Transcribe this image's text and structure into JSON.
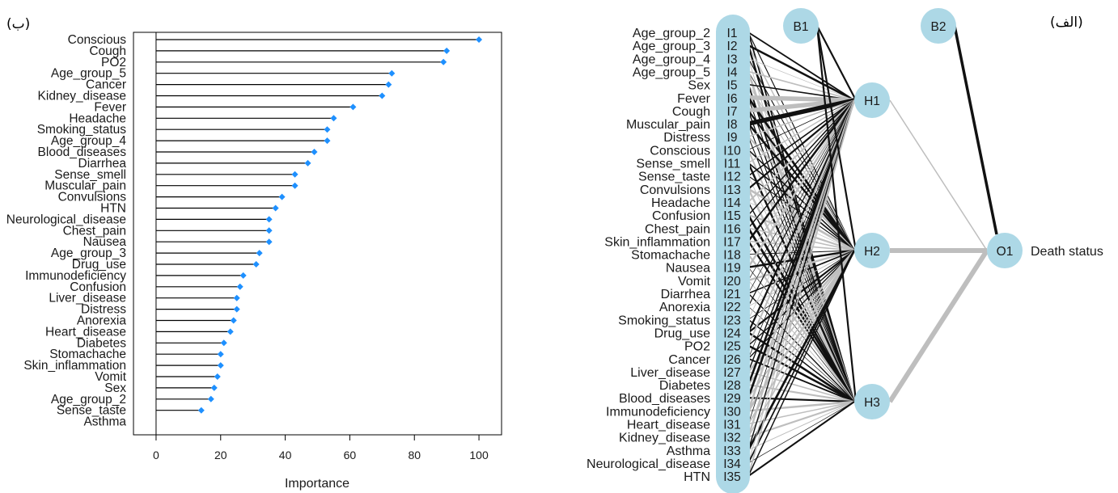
{
  "panel_labels": {
    "left": "(ب)",
    "right": "(الف)"
  },
  "colors": {
    "point": "#1e90ff",
    "node": "#add8e6",
    "edge_positive": "#111111",
    "edge_negative": "#bebebe",
    "axis": "#000000"
  },
  "chart_data": [
    {
      "type": "dot",
      "xlabel": "Importance",
      "xlim": [
        -7,
        107
      ],
      "xticks": [
        0,
        20,
        40,
        60,
        80,
        100
      ],
      "grid": false,
      "categories": [
        "Conscious",
        "Cough",
        "PO2",
        "Age_group_5",
        "Cancer",
        "Kidney_disease",
        "Fever",
        "Headache",
        "Smoking_status",
        "Age_group_4",
        "Blood_diseases",
        "Diarrhea",
        "Sense_smell",
        "Muscular_pain",
        "Convulsions",
        "HTN",
        "Neurological_disease",
        "Chest_pain",
        "Nausea",
        "Age_group_3",
        "Drug_use",
        "Immunodeficiency",
        "Confusion",
        "Liver_disease",
        "Distress",
        "Anorexia",
        "Heart_disease",
        "Diabetes",
        "Stomachache",
        "Skin_inflammation",
        "Vomit",
        "Sex",
        "Age_group_2",
        "Sense_taste",
        "Asthma"
      ],
      "values": [
        100,
        90,
        89,
        73,
        72,
        70,
        61,
        55,
        53,
        53,
        49,
        47,
        43,
        43,
        39,
        37,
        35,
        35,
        35,
        32,
        31,
        27,
        26,
        25,
        25,
        24,
        23,
        21,
        20,
        20,
        19,
        18,
        17,
        14,
        0
      ]
    },
    {
      "type": "network",
      "inputs": [
        {
          "id": "I1",
          "name": "Age_group_2"
        },
        {
          "id": "I2",
          "name": "Age_group_3"
        },
        {
          "id": "I3",
          "name": "Age_group_4"
        },
        {
          "id": "I4",
          "name": "Age_group_5"
        },
        {
          "id": "I5",
          "name": "Sex"
        },
        {
          "id": "I6",
          "name": "Fever"
        },
        {
          "id": "I7",
          "name": "Cough"
        },
        {
          "id": "I8",
          "name": "Muscular_pain"
        },
        {
          "id": "I9",
          "name": "Distress"
        },
        {
          "id": "I10",
          "name": "Conscious"
        },
        {
          "id": "I11",
          "name": "Sense_smell"
        },
        {
          "id": "I12",
          "name": "Sense_taste"
        },
        {
          "id": "I13",
          "name": "Convulsions"
        },
        {
          "id": "I14",
          "name": "Headache"
        },
        {
          "id": "I15",
          "name": "Confusion"
        },
        {
          "id": "I16",
          "name": "Chest_pain"
        },
        {
          "id": "I17",
          "name": "Skin_inflammation"
        },
        {
          "id": "I18",
          "name": "Stomachache"
        },
        {
          "id": "I19",
          "name": "Nausea"
        },
        {
          "id": "I20",
          "name": "Vomit"
        },
        {
          "id": "I21",
          "name": "Diarrhea"
        },
        {
          "id": "I22",
          "name": "Anorexia"
        },
        {
          "id": "I23",
          "name": "Smoking_status"
        },
        {
          "id": "I24",
          "name": "Drug_use"
        },
        {
          "id": "I25",
          "name": "PO2"
        },
        {
          "id": "I26",
          "name": "Cancer"
        },
        {
          "id": "I27",
          "name": "Liver_disease"
        },
        {
          "id": "I28",
          "name": "Diabetes"
        },
        {
          "id": "I29",
          "name": "Blood_diseases"
        },
        {
          "id": "I30",
          "name": "Immunodeficiency"
        },
        {
          "id": "I31",
          "name": "Heart_disease"
        },
        {
          "id": "I32",
          "name": "Kidney_disease"
        },
        {
          "id": "I33",
          "name": "Asthma"
        },
        {
          "id": "I34",
          "name": "Neurological_disease"
        },
        {
          "id": "I35",
          "name": "HTN"
        }
      ],
      "bias_nodes": [
        "B1",
        "B2"
      ],
      "hidden": [
        "H1",
        "H2",
        "H3"
      ],
      "output": {
        "id": "O1",
        "name": "Death status"
      }
    }
  ]
}
